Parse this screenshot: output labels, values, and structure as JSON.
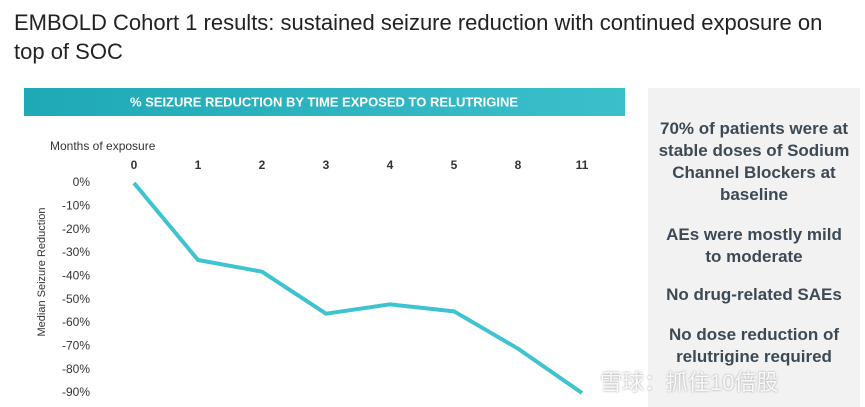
{
  "header": {
    "title": "EMBOLD Cohort 1 results: sustained seizure reduction with continued exposure on top of SOC"
  },
  "chart_data": {
    "type": "line",
    "title": "% SEIZURE REDUCTION BY TIME EXPOSED TO RELUTRIGINE",
    "x_label": "Months of exposure",
    "y_label": "Median Seizure Reduction",
    "categories": [
      "0",
      "1",
      "2",
      "3",
      "4",
      "5",
      "8",
      "11"
    ],
    "series": [
      {
        "name": "Median Seizure Reduction",
        "color": "#3ec3d1",
        "values": [
          0,
          -33,
          -38,
          -56,
          -52,
          -55,
          -71,
          -90
        ]
      }
    ],
    "ylim": [
      0,
      -90
    ],
    "yticks": [
      {
        "value": 0,
        "label": "0%"
      },
      {
        "value": -10,
        "label": "-10%"
      },
      {
        "value": -20,
        "label": "-20%"
      },
      {
        "value": -30,
        "label": "-30%"
      },
      {
        "value": -40,
        "label": "-40%"
      },
      {
        "value": -50,
        "label": "-50%"
      },
      {
        "value": -60,
        "label": "-60%"
      },
      {
        "value": -70,
        "label": "-70%"
      },
      {
        "value": -80,
        "label": "-80%"
      },
      {
        "value": -90,
        "label": "-90%"
      }
    ],
    "grid": false
  },
  "side_notes": [
    "70% of patients were at stable doses of Sodium Channel Blockers at baseline",
    "AEs were mostly mild to moderate",
    "No drug-related SAEs",
    "No dose reduction of relutrigine required"
  ],
  "watermark": "雪球：抓住10倍股"
}
